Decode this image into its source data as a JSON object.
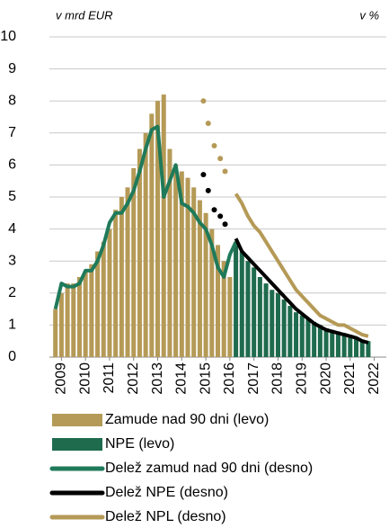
{
  "chart_data": {
    "type": "bar-line",
    "ylabel": "v mrd EUR",
    "y2label": "v %",
    "xlim": [
      2008.5,
      2022.5
    ],
    "xticks": [
      2009,
      2010,
      2011,
      2012,
      2013,
      2014,
      2015,
      2016,
      2017,
      2018,
      2019,
      2020,
      2021,
      2022
    ],
    "ylim": [
      0,
      10
    ],
    "yticks": [
      0,
      1,
      2,
      3,
      4,
      5,
      6,
      7,
      8,
      9,
      10
    ],
    "y2lim": [
      0,
      10
    ],
    "grid": true,
    "series": [
      {
        "name": "Zamude nad 90 dni (levo)",
        "type": "bar",
        "color": "#b59a57",
        "x": [
          2008.75,
          2009.0,
          2009.25,
          2009.5,
          2009.75,
          2010.0,
          2010.25,
          2010.5,
          2010.75,
          2011.0,
          2011.25,
          2011.5,
          2011.75,
          2012.0,
          2012.25,
          2012.5,
          2012.75,
          2013.0,
          2013.25,
          2013.5,
          2013.75,
          2014.0,
          2014.25,
          2014.5,
          2014.75,
          2015.0,
          2015.25,
          2015.5,
          2015.75,
          2016.0
        ],
        "values": [
          1.5,
          2.0,
          2.3,
          2.3,
          2.5,
          2.7,
          2.9,
          3.3,
          3.6,
          4.0,
          4.6,
          5.0,
          5.3,
          5.9,
          6.5,
          7.0,
          7.6,
          8.0,
          8.2,
          6.5,
          6.0,
          5.8,
          5.6,
          5.3,
          4.9,
          4.5,
          4.0,
          3.5,
          3.0,
          2.5
        ]
      },
      {
        "name": "NPE (levo)",
        "type": "bar",
        "color": "#1f6b4e",
        "x": [
          2016.25,
          2016.5,
          2016.75,
          2017.0,
          2017.25,
          2017.5,
          2017.75,
          2018.0,
          2018.25,
          2018.5,
          2018.75,
          2019.0,
          2019.25,
          2019.5,
          2019.75,
          2020.0,
          2020.25,
          2020.5,
          2020.75,
          2021.0,
          2021.25,
          2021.5,
          2021.75
        ],
        "values": [
          3.5,
          3.3,
          3.0,
          2.8,
          2.5,
          2.3,
          2.1,
          2.0,
          1.8,
          1.6,
          1.4,
          1.3,
          1.2,
          1.1,
          1.0,
          0.9,
          0.85,
          0.8,
          0.75,
          0.7,
          0.6,
          0.55,
          0.5
        ]
      },
      {
        "name": "Delež zamud nad 90 dni (desno)",
        "type": "line",
        "axis": "y2",
        "color": "#1f7a5a",
        "x": [
          2008.75,
          2009.0,
          2009.25,
          2009.5,
          2009.75,
          2010.0,
          2010.25,
          2010.5,
          2010.75,
          2011.0,
          2011.25,
          2011.5,
          2011.75,
          2012.0,
          2012.25,
          2012.5,
          2012.75,
          2013.0,
          2013.25,
          2013.5,
          2013.75,
          2014.0,
          2014.25,
          2014.5,
          2014.75,
          2015.0,
          2015.25,
          2015.5,
          2015.75,
          2016.0,
          2016.25
        ],
        "values": [
          1.5,
          2.3,
          2.2,
          2.2,
          2.3,
          2.7,
          2.7,
          3.0,
          3.5,
          4.2,
          4.5,
          4.5,
          4.8,
          5.2,
          5.8,
          6.5,
          7.1,
          7.2,
          5.0,
          5.5,
          6.0,
          4.8,
          4.7,
          4.5,
          4.2,
          4.0,
          3.5,
          2.8,
          2.5,
          3.2,
          3.6
        ]
      },
      {
        "name": "Delež NPL (desno)",
        "type": "line",
        "axis": "y2",
        "color": "#b59a57",
        "x": [
          2016.25,
          2016.5,
          2016.75,
          2017.0,
          2017.25,
          2017.5,
          2017.75,
          2018.0,
          2018.25,
          2018.5,
          2018.75,
          2019.0,
          2019.25,
          2019.5,
          2019.75,
          2020.0,
          2020.25,
          2020.5,
          2020.75,
          2021.0,
          2021.25,
          2021.5,
          2021.75
        ],
        "values": [
          5.1,
          4.8,
          4.4,
          4.1,
          3.9,
          3.6,
          3.3,
          3.0,
          2.7,
          2.4,
          2.1,
          1.9,
          1.7,
          1.5,
          1.3,
          1.2,
          1.1,
          1.0,
          1.0,
          0.9,
          0.8,
          0.7,
          0.65
        ],
        "dots": {
          "x": [
            2014.9,
            2015.1,
            2015.35,
            2015.6,
            2015.8
          ],
          "values": [
            8.0,
            7.3,
            6.6,
            6.2,
            5.8
          ]
        }
      },
      {
        "name": "Delež NPE (desno)",
        "type": "line",
        "axis": "y2",
        "color": "#000000",
        "x": [
          2016.25,
          2016.5,
          2016.75,
          2017.0,
          2017.25,
          2017.5,
          2017.75,
          2018.0,
          2018.25,
          2018.5,
          2018.75,
          2019.0,
          2019.25,
          2019.5,
          2019.75,
          2020.0,
          2020.25,
          2020.5,
          2020.75,
          2021.0,
          2021.25,
          2021.5,
          2021.75
        ],
        "values": [
          3.7,
          3.3,
          3.1,
          2.9,
          2.7,
          2.5,
          2.3,
          2.1,
          1.9,
          1.7,
          1.5,
          1.35,
          1.2,
          1.05,
          0.95,
          0.85,
          0.8,
          0.75,
          0.7,
          0.65,
          0.6,
          0.5,
          0.45
        ],
        "dots": {
          "x": [
            2014.9,
            2015.1,
            2015.35,
            2015.6,
            2015.8
          ],
          "values": [
            5.7,
            5.2,
            4.6,
            4.4,
            4.15
          ]
        }
      }
    ],
    "legend_order": [
      0,
      1,
      2,
      4,
      3
    ]
  }
}
